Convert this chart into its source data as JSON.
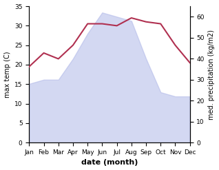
{
  "months": [
    "Jan",
    "Feb",
    "Mar",
    "Apr",
    "May",
    "Jun",
    "Jul",
    "Aug",
    "Sep",
    "Oct",
    "Nov",
    "Dec"
  ],
  "x": [
    0,
    1,
    2,
    3,
    4,
    5,
    6,
    7,
    8,
    9,
    10,
    11
  ],
  "precipitation": [
    28,
    30,
    30,
    40,
    52,
    62,
    60,
    58,
    40,
    24,
    22,
    22
  ],
  "temperature": [
    19.5,
    23.0,
    21.5,
    25.0,
    30.5,
    30.5,
    30.0,
    32.0,
    31.0,
    30.5,
    25.0,
    20.5
  ],
  "precip_color": "#b0b8e8",
  "temp_color": "#b03050",
  "precip_alpha": 0.55,
  "left_ylabel": "max temp (C)",
  "right_ylabel": "med. precipitation (kg/m2)",
  "xlabel": "date (month)",
  "ylim_left": [
    0,
    35
  ],
  "ylim_right": [
    0,
    65
  ],
  "yticks_left": [
    0,
    5,
    10,
    15,
    20,
    25,
    30,
    35
  ],
  "yticks_right": [
    0,
    10,
    20,
    30,
    40,
    50,
    60
  ],
  "background_color": "#ffffff",
  "label_fontsize": 7,
  "tick_fontsize": 6.5,
  "xlabel_fontsize": 8
}
